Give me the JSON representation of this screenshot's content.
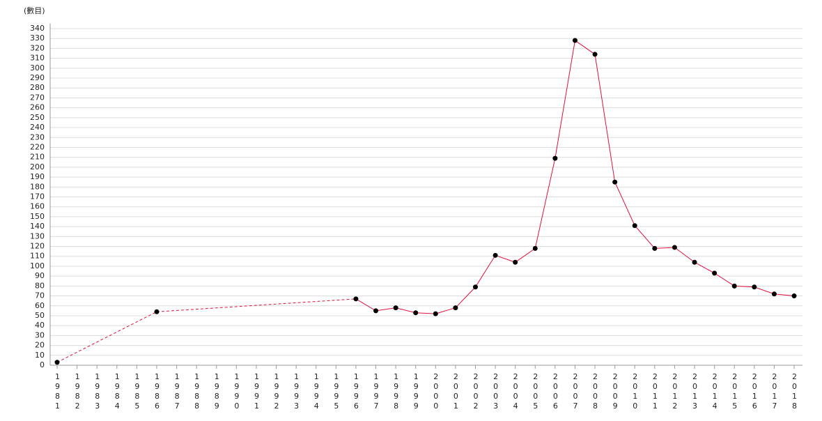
{
  "chart_data": {
    "type": "line",
    "y_label": "(數目)",
    "categories": [
      "1981",
      "1982",
      "1983",
      "1984",
      "1985",
      "1986",
      "1987",
      "1988",
      "1989",
      "1990",
      "1991",
      "1992",
      "1993",
      "1994",
      "1995",
      "1996",
      "1997",
      "1998",
      "1999",
      "2000",
      "2001",
      "2002",
      "2003",
      "2004",
      "2005",
      "2006",
      "2007",
      "2008",
      "2009",
      "2010",
      "2011",
      "2012",
      "2013",
      "2014",
      "2015",
      "2016",
      "2017",
      "2018"
    ],
    "series": [
      {
        "color": "#e0103c",
        "values": [
          3,
          null,
          null,
          null,
          null,
          54,
          null,
          null,
          null,
          null,
          null,
          null,
          null,
          null,
          null,
          67,
          55,
          58,
          53,
          52,
          58,
          79,
          111,
          104,
          118,
          209,
          328,
          314,
          185,
          141,
          118,
          119,
          104,
          93,
          80,
          79,
          72,
          70
        ]
      }
    ],
    "ylim": [
      0,
      345
    ],
    "yticks": [
      0,
      10,
      20,
      30,
      40,
      50,
      60,
      70,
      80,
      90,
      100,
      110,
      120,
      130,
      140,
      150,
      160,
      170,
      180,
      190,
      200,
      210,
      220,
      230,
      240,
      250,
      260,
      270,
      280,
      290,
      300,
      310,
      320,
      330,
      340
    ],
    "grid": true
  }
}
